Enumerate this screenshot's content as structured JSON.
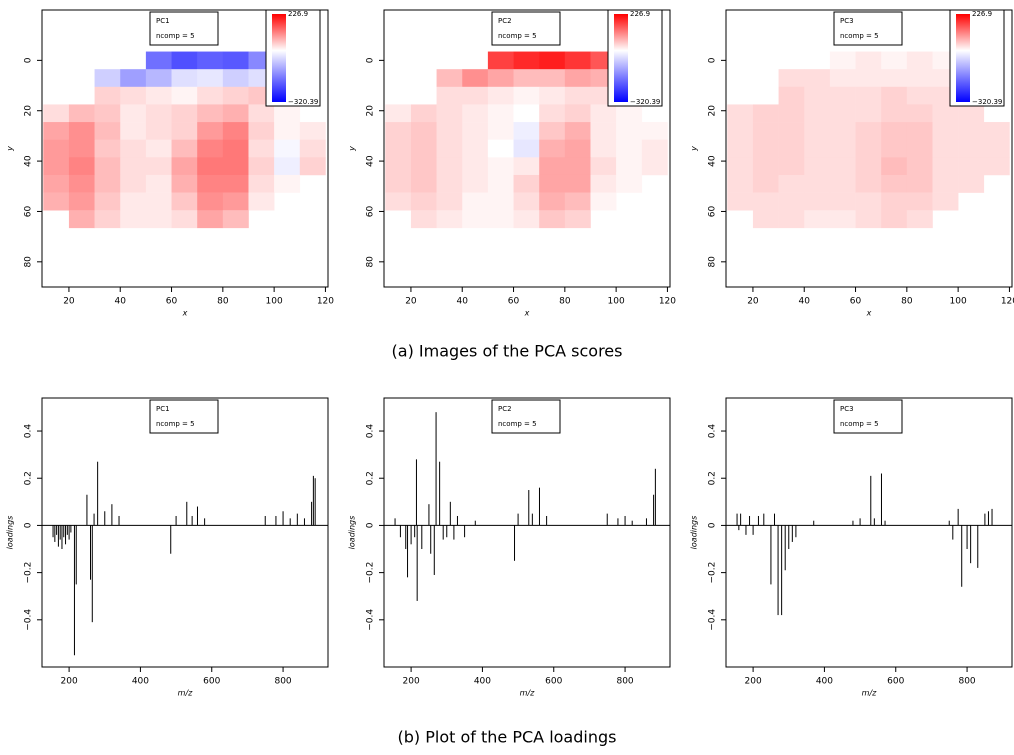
{
  "captions": [
    "(a) Images of the PCA scores",
    "(b) Plot of the PCA loadings"
  ],
  "chart_data": [
    {
      "type": "heatmap",
      "legend": [
        "PC1",
        "ncomp = 5"
      ],
      "xlabel": "x",
      "ylabel": "y",
      "xlim": [
        9.5,
        121
      ],
      "ylim": [
        90,
        -20
      ],
      "xticks": [
        20,
        40,
        60,
        80,
        100,
        120
      ],
      "yticks": [
        0,
        20,
        40,
        60,
        80
      ],
      "zlim": [
        -320.39,
        226.9
      ],
      "zticks": [
        {
          "value": -320.39,
          "label": "−320.39"
        },
        226.9
      ],
      "low_color": "#0000ff",
      "mid_color": "#ffffff",
      "high_color": "#ff0000",
      "x": [
        15,
        25,
        35,
        45,
        55,
        65,
        75,
        85,
        95,
        105,
        115
      ],
      "y": [
        0,
        7,
        14,
        21,
        28,
        35,
        42,
        49,
        56,
        63
      ],
      "z": [
        [
          null,
          null,
          null,
          null,
          -180,
          -220,
          -200,
          -210,
          -150,
          null,
          null
        ],
        [
          null,
          null,
          -60,
          -120,
          -90,
          -40,
          -30,
          -60,
          -40,
          -10,
          null
        ],
        [
          null,
          null,
          40,
          30,
          20,
          10,
          30,
          40,
          50,
          20,
          null
        ],
        [
          30,
          60,
          50,
          20,
          30,
          40,
          60,
          70,
          30,
          10,
          null
        ],
        [
          80,
          100,
          60,
          20,
          30,
          40,
          90,
          110,
          40,
          10,
          20
        ],
        [
          90,
          100,
          50,
          30,
          20,
          60,
          110,
          120,
          30,
          -10,
          30
        ],
        [
          90,
          110,
          60,
          30,
          30,
          80,
          120,
          120,
          40,
          -20,
          40
        ],
        [
          80,
          100,
          60,
          30,
          20,
          70,
          110,
          110,
          30,
          10,
          null
        ],
        [
          70,
          90,
          50,
          20,
          20,
          50,
          100,
          90,
          20,
          null,
          null
        ],
        [
          null,
          70,
          40,
          20,
          20,
          30,
          80,
          60,
          null,
          null,
          null
        ]
      ]
    },
    {
      "type": "heatmap",
      "legend": [
        "PC2",
        "ncomp = 5"
      ],
      "xlabel": "x",
      "ylabel": "y",
      "xlim": [
        9.5,
        121
      ],
      "ylim": [
        90,
        -20
      ],
      "xticks": [
        20,
        40,
        60,
        80,
        100,
        120
      ],
      "yticks": [
        0,
        20,
        40,
        60,
        80
      ],
      "zlim": [
        -320.39,
        226.9
      ],
      "zticks": [
        {
          "value": -320.39,
          "label": "−320.39"
        },
        226.9
      ],
      "low_color": "#0000ff",
      "mid_color": "#ffffff",
      "high_color": "#ff0000",
      "x": [
        15,
        25,
        35,
        45,
        55,
        65,
        75,
        85,
        95,
        105,
        115
      ],
      "y": [
        0,
        7,
        14,
        21,
        28,
        35,
        42,
        49,
        56,
        63
      ],
      "z": [
        [
          null,
          null,
          null,
          null,
          170,
          190,
          200,
          180,
          150,
          null,
          null
        ],
        [
          null,
          null,
          60,
          100,
          80,
          60,
          60,
          80,
          70,
          20,
          null
        ],
        [
          null,
          null,
          30,
          30,
          20,
          10,
          20,
          30,
          30,
          20,
          null
        ],
        [
          20,
          40,
          30,
          20,
          10,
          0,
          30,
          40,
          20,
          10,
          null
        ],
        [
          40,
          50,
          30,
          20,
          10,
          -20,
          50,
          70,
          20,
          10,
          10
        ],
        [
          40,
          50,
          30,
          20,
          0,
          -30,
          70,
          80,
          20,
          10,
          20
        ],
        [
          40,
          50,
          30,
          20,
          10,
          20,
          80,
          80,
          30,
          10,
          20
        ],
        [
          40,
          50,
          30,
          20,
          10,
          40,
          80,
          80,
          20,
          10,
          null
        ],
        [
          30,
          40,
          30,
          10,
          10,
          30,
          70,
          60,
          10,
          null,
          null
        ],
        [
          null,
          30,
          20,
          10,
          10,
          20,
          50,
          40,
          null,
          null,
          null
        ]
      ]
    },
    {
      "type": "heatmap",
      "legend": [
        "PC3",
        "ncomp = 5"
      ],
      "xlabel": "x",
      "ylabel": "y",
      "xlim": [
        9.5,
        121
      ],
      "ylim": [
        90,
        -20
      ],
      "xticks": [
        20,
        40,
        60,
        80,
        100,
        120
      ],
      "yticks": [
        0,
        20,
        40,
        60,
        80
      ],
      "zlim": [
        -320.39,
        226.9
      ],
      "zticks": [
        {
          "value": -320.39,
          "label": "−320.39"
        },
        226.9
      ],
      "low_color": "#0000ff",
      "mid_color": "#ffffff",
      "high_color": "#ff0000",
      "x": [
        15,
        25,
        35,
        45,
        55,
        65,
        75,
        85,
        95,
        105,
        115
      ],
      "y": [
        0,
        7,
        14,
        21,
        28,
        35,
        42,
        49,
        56,
        63
      ],
      "z": [
        [
          null,
          null,
          null,
          null,
          10,
          20,
          10,
          20,
          10,
          null,
          null
        ],
        [
          null,
          null,
          30,
          30,
          20,
          20,
          20,
          20,
          20,
          20,
          null
        ],
        [
          null,
          null,
          40,
          30,
          30,
          30,
          40,
          30,
          30,
          30,
          null
        ],
        [
          30,
          40,
          40,
          30,
          30,
          30,
          40,
          40,
          30,
          30,
          null
        ],
        [
          30,
          40,
          40,
          30,
          30,
          40,
          50,
          50,
          30,
          30,
          30
        ],
        [
          30,
          40,
          40,
          30,
          30,
          40,
          50,
          50,
          30,
          30,
          30
        ],
        [
          30,
          40,
          40,
          30,
          30,
          40,
          60,
          50,
          30,
          30,
          30
        ],
        [
          30,
          40,
          30,
          30,
          30,
          40,
          50,
          50,
          30,
          30,
          null
        ],
        [
          30,
          30,
          30,
          30,
          30,
          30,
          40,
          40,
          30,
          null,
          null
        ],
        [
          null,
          30,
          30,
          20,
          20,
          30,
          40,
          30,
          null,
          null,
          null
        ]
      ]
    },
    {
      "type": "spike",
      "legend": [
        "PC1",
        "ncomp = 5"
      ],
      "xlabel": "m/z",
      "ylabel": "loadings",
      "color": "#000000",
      "xlim": [
        124,
        926
      ],
      "ylim": [
        -0.6,
        0.54
      ],
      "xticks": [
        200,
        400,
        600,
        800
      ],
      "yticks": [
        {
          "value": -0.4,
          "label": "−0.4"
        },
        {
          "value": -0.2,
          "label": "−0.2"
        },
        0,
        0.2,
        0.4
      ],
      "x": [
        155,
        160,
        165,
        170,
        175,
        180,
        185,
        190,
        195,
        200,
        205,
        215,
        220,
        250,
        260,
        265,
        270,
        280,
        300,
        320,
        340,
        485,
        500,
        530,
        545,
        560,
        580,
        750,
        780,
        800,
        820,
        840,
        860,
        880,
        885,
        890
      ],
      "values": [
        -0.05,
        -0.07,
        -0.04,
        -0.09,
        -0.06,
        -0.1,
        -0.05,
        -0.08,
        -0.04,
        -0.06,
        -0.03,
        -0.55,
        -0.25,
        0.13,
        -0.23,
        -0.41,
        0.05,
        0.27,
        0.06,
        0.09,
        0.04,
        -0.12,
        0.04,
        0.1,
        0.04,
        0.08,
        0.03,
        0.04,
        0.04,
        0.06,
        0.03,
        0.05,
        0.03,
        0.1,
        0.21,
        0.2
      ]
    },
    {
      "type": "spike",
      "legend": [
        "PC2",
        "ncomp = 5"
      ],
      "xlabel": "m/z",
      "ylabel": "loadings",
      "color": "#000000",
      "xlim": [
        124,
        926
      ],
      "ylim": [
        -0.6,
        0.54
      ],
      "xticks": [
        200,
        400,
        600,
        800
      ],
      "yticks": [
        {
          "value": -0.4,
          "label": "−0.4"
        },
        {
          "value": -0.2,
          "label": "−0.2"
        },
        0,
        0.2,
        0.4
      ],
      "x": [
        155,
        170,
        185,
        190,
        200,
        210,
        215,
        217,
        230,
        250,
        255,
        265,
        270,
        280,
        290,
        300,
        310,
        320,
        330,
        350,
        380,
        490,
        500,
        530,
        540,
        560,
        580,
        750,
        780,
        800,
        820,
        860,
        880,
        885
      ],
      "values": [
        0.03,
        -0.05,
        -0.1,
        -0.22,
        -0.08,
        -0.05,
        0.28,
        -0.32,
        -0.1,
        0.09,
        -0.12,
        -0.21,
        0.48,
        0.27,
        -0.06,
        -0.05,
        0.1,
        -0.06,
        0.04,
        -0.05,
        0.02,
        -0.15,
        0.05,
        0.15,
        0.05,
        0.16,
        0.04,
        0.05,
        0.03,
        0.04,
        0.02,
        0.03,
        0.13,
        0.24
      ]
    },
    {
      "type": "spike",
      "legend": [
        "PC3",
        "ncomp = 5"
      ],
      "xlabel": "m/z",
      "ylabel": "loadings",
      "color": "#000000",
      "xlim": [
        124,
        926
      ],
      "ylim": [
        -0.6,
        0.54
      ],
      "xticks": [
        200,
        400,
        600,
        800
      ],
      "yticks": [
        {
          "value": -0.4,
          "label": "−0.4"
        },
        {
          "value": -0.2,
          "label": "−0.2"
        },
        0,
        0.2,
        0.4
      ],
      "x": [
        155,
        160,
        165,
        180,
        190,
        200,
        215,
        230,
        250,
        260,
        270,
        280,
        290,
        300,
        310,
        320,
        370,
        480,
        500,
        530,
        540,
        560,
        570,
        750,
        760,
        775,
        785,
        800,
        810,
        830,
        850,
        860,
        870
      ],
      "values": [
        0.05,
        -0.02,
        0.05,
        -0.04,
        0.04,
        -0.04,
        0.04,
        0.05,
        -0.25,
        0.05,
        -0.38,
        -0.38,
        -0.19,
        -0.1,
        -0.07,
        -0.05,
        0.02,
        0.02,
        0.03,
        0.21,
        0.03,
        0.22,
        0.02,
        0.02,
        -0.06,
        0.07,
        -0.26,
        -0.1,
        -0.16,
        -0.18,
        0.05,
        0.06,
        0.07
      ]
    }
  ]
}
